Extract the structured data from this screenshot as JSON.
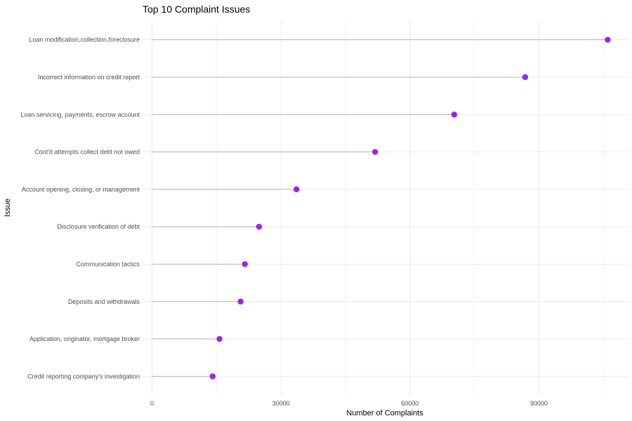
{
  "chart_data": {
    "type": "lollipop",
    "title": "Top 10 Complaint Issues",
    "xlabel": "Number of Complaints",
    "ylabel": "Issue",
    "xlim": [
      -2200,
      111000
    ],
    "x_ticks": [
      0,
      30000,
      60000,
      90000
    ],
    "x_tick_labels": [
      "0",
      "30000",
      "60000",
      "90000"
    ],
    "grid": true,
    "orientation": "horizontal",
    "point_color": "#a020f0",
    "stem_color": "#b3b3b3",
    "categories": [
      "Loan modification,collection,foreclosure",
      "Incorrect information on credit report",
      "Loan servicing, payments, escrow account",
      "Cont'd attempts collect debt not owed",
      "Account opening, closing, or management",
      "Disclosure verification of debt",
      "Communication tactics",
      "Deposits and withdrawals",
      "Application, originator, mortgage broker",
      "Credit reporting company's investigation"
    ],
    "values": [
      106000,
      86800,
      70300,
      51900,
      33600,
      24900,
      21600,
      20600,
      15700,
      14100
    ]
  }
}
